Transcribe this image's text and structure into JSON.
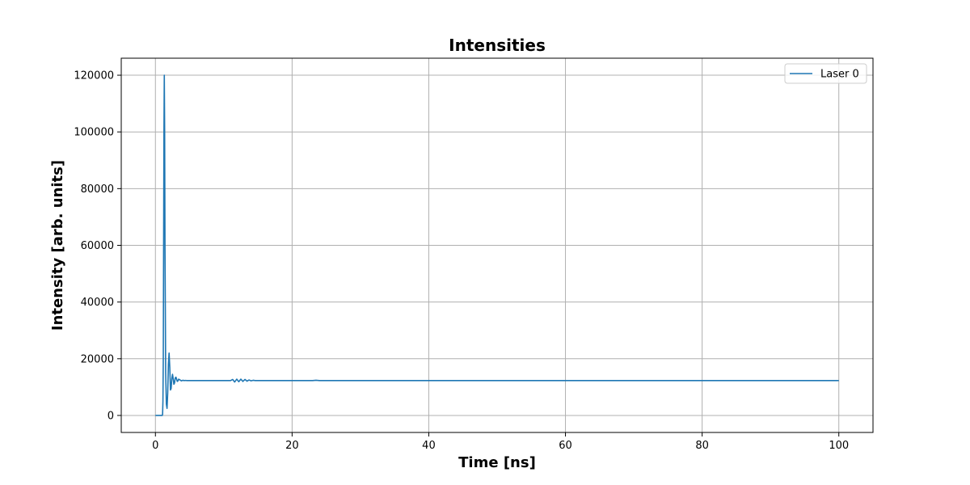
{
  "chart_data": {
    "type": "line",
    "title": "Intensities",
    "xlabel": "Time [ns]",
    "ylabel": "Intensity [arb. units]",
    "xlim": [
      -5,
      105
    ],
    "ylim": [
      -6000,
      126000
    ],
    "xticks": [
      0,
      20,
      40,
      60,
      80,
      100
    ],
    "xtick_labels": [
      "0",
      "20",
      "40",
      "60",
      "80",
      "100"
    ],
    "yticks": [
      0,
      20000,
      40000,
      60000,
      80000,
      100000,
      120000
    ],
    "ytick_labels": [
      "0",
      "20000",
      "40000",
      "60000",
      "80000",
      "100000",
      "120000"
    ],
    "grid": true,
    "legend_position": "top-right",
    "series": [
      {
        "name": "Laser 0",
        "color": "#1f77b4",
        "x": [
          0,
          0.5,
          1.0,
          1.05,
          1.1,
          1.15,
          1.2,
          1.25,
          1.3,
          1.35,
          1.4,
          1.5,
          1.6,
          1.7,
          1.8,
          1.9,
          2.0,
          2.1,
          2.2,
          2.3,
          2.4,
          2.5,
          2.6,
          2.7,
          2.8,
          2.9,
          3.0,
          3.1,
          3.2,
          3.3,
          3.4,
          3.6,
          3.8,
          4.0,
          4.2,
          4.4,
          4.6,
          4.8,
          5.0,
          6.0,
          8.0,
          10.0,
          11.0,
          11.3,
          11.6,
          11.9,
          12.2,
          12.5,
          12.8,
          13.1,
          13.4,
          13.7,
          14.0,
          14.3,
          14.6,
          15.0,
          20.0,
          23.0,
          23.5,
          24.0,
          30.0,
          40.0,
          50.0,
          60.0,
          70.0,
          80.0,
          90.0,
          100.0
        ],
        "y": [
          0,
          0,
          0,
          500,
          5000,
          20000,
          60000,
          100000,
          120000,
          100000,
          60000,
          15000,
          4000,
          2500,
          8000,
          18000,
          22000,
          17000,
          9000,
          9500,
          13000,
          14500,
          13000,
          11000,
          11500,
          13200,
          13500,
          12800,
          12000,
          12200,
          12800,
          12500,
          12200,
          12400,
          12300,
          12350,
          12300,
          12300,
          12300,
          12300,
          12300,
          12300,
          12300,
          12700,
          11800,
          12800,
          11900,
          12800,
          12000,
          12700,
          12100,
          12500,
          12200,
          12400,
          12300,
          12300,
          12300,
          12300,
          12400,
          12300,
          12300,
          12300,
          12300,
          12300,
          12300,
          12300,
          12300,
          12300
        ]
      }
    ]
  }
}
